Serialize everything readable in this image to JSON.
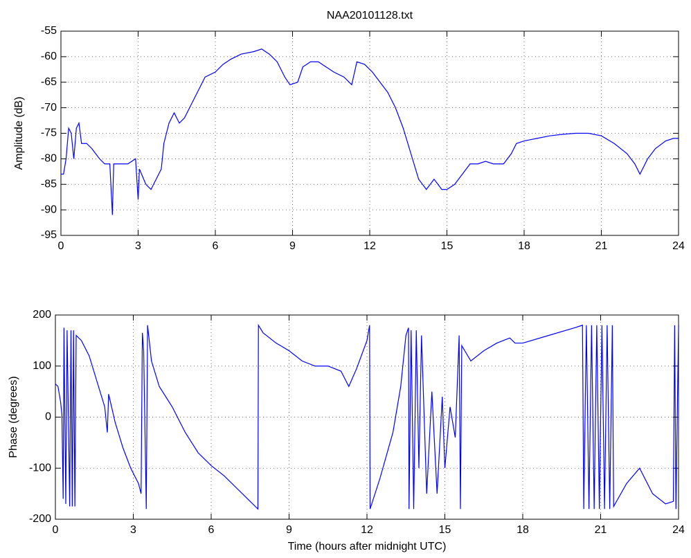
{
  "chart_data": [
    {
      "type": "line",
      "title": "NAA20101128.txt",
      "ylabel": "Amplitude (dB)",
      "grid": true,
      "xlim": [
        0,
        24
      ],
      "xticks": [
        0,
        3,
        6,
        9,
        12,
        15,
        18,
        21,
        24
      ],
      "ylim": [
        -95,
        -55
      ],
      "yticks": [
        -95,
        -90,
        -85,
        -80,
        -75,
        -70,
        -65,
        -60,
        -55
      ],
      "series": [
        {
          "color": "#0000ff",
          "x": [
            0,
            0.1,
            0.2,
            0.3,
            0.4,
            0.5,
            0.6,
            0.7,
            0.8,
            1.0,
            1.2,
            1.5,
            1.7,
            1.9,
            2.0,
            2.05,
            2.3,
            2.6,
            2.9,
            3.0,
            3.05,
            3.3,
            3.5,
            3.7,
            3.9,
            4.0,
            4.2,
            4.4,
            4.6,
            4.8,
            5.0,
            5.3,
            5.6,
            6.0,
            6.3,
            6.6,
            7.0,
            7.5,
            7.8,
            8.1,
            8.4,
            8.7,
            8.9,
            9.2,
            9.4,
            9.7,
            10.0,
            10.3,
            10.6,
            11.0,
            11.3,
            11.5,
            11.8,
            12.1,
            12.4,
            12.7,
            13.0,
            13.3,
            13.6,
            13.9,
            14.2,
            14.5,
            14.8,
            15.0,
            15.3,
            15.6,
            15.9,
            16.2,
            16.5,
            16.8,
            17.2,
            17.5,
            17.7,
            18.0,
            18.5,
            19.0,
            19.5,
            20.0,
            20.5,
            21.0,
            21.5,
            22.0,
            22.3,
            22.5,
            22.8,
            23.1,
            23.5,
            23.8,
            24
          ],
          "values": [
            -83,
            -83,
            -80,
            -74,
            -75,
            -80,
            -74,
            -73,
            -77,
            -77,
            -78,
            -80,
            -81,
            -81,
            -91,
            -81,
            -81,
            -81,
            -80,
            -88,
            -82,
            -85,
            -86,
            -84,
            -82,
            -77,
            -73,
            -71,
            -73,
            -72,
            -70,
            -67,
            -64,
            -63,
            -61.5,
            -60.5,
            -59.5,
            -59,
            -58.5,
            -59.5,
            -61,
            -64,
            -65.5,
            -65,
            -62,
            -61,
            -61,
            -62,
            -63,
            -64,
            -65.5,
            -61,
            -61.5,
            -63,
            -65,
            -67,
            -70,
            -74,
            -79,
            -84,
            -86,
            -84,
            -86,
            -86,
            -85,
            -83,
            -81,
            -81,
            -80.5,
            -81,
            -81,
            -79,
            -77,
            -76.5,
            -76,
            -75.5,
            -75.2,
            -75,
            -75,
            -75.5,
            -77,
            -79,
            -81,
            -83,
            -80,
            -78,
            -76.5,
            -76,
            -76
          ]
        }
      ]
    },
    {
      "type": "line",
      "xlabel": "Time (hours after midnight UTC)",
      "ylabel": "Phase (degrees)",
      "grid": true,
      "xlim": [
        0,
        24
      ],
      "xticks": [
        0,
        3,
        6,
        9,
        12,
        15,
        18,
        21,
        24
      ],
      "ylim": [
        -200,
        200
      ],
      "yticks": [
        -200,
        -100,
        0,
        100,
        200
      ],
      "series": [
        {
          "color": "#0000ff",
          "x": [
            0,
            0.1,
            0.2,
            0.25,
            0.3,
            0.33,
            0.4,
            0.45,
            0.5,
            0.55,
            0.6,
            0.65,
            0.7,
            0.75,
            0.8,
            1.0,
            1.3,
            1.6,
            1.9,
            2.0,
            2.05,
            2.3,
            2.6,
            2.9,
            3.2,
            3.3,
            3.35,
            3.4,
            3.5,
            3.55,
            3.7,
            4.0,
            4.5,
            5.0,
            5.5,
            6.0,
            6.5,
            7.0,
            7.5,
            7.8,
            7.82,
            8.0,
            8.5,
            9.0,
            9.5,
            10.0,
            10.5,
            11.0,
            11.3,
            11.6,
            12.0,
            12.1,
            12.12,
            12.5,
            13.0,
            13.3,
            13.5,
            13.6,
            13.62,
            13.7,
            13.8,
            13.9,
            14.0,
            14.1,
            14.3,
            14.5,
            14.7,
            14.9,
            15.0,
            15.2,
            15.4,
            15.55,
            15.6,
            15.65,
            16.0,
            16.5,
            17.0,
            17.5,
            17.7,
            18.0,
            19.0,
            20.0,
            20.3,
            20.35,
            20.45,
            20.55,
            20.65,
            20.75,
            20.85,
            20.95,
            21.05,
            21.15,
            21.25,
            21.35,
            21.45,
            21.5,
            22.0,
            22.5,
            23.0,
            23.5,
            23.8,
            23.85,
            23.9,
            24
          ],
          "values": [
            65,
            60,
            30,
            5,
            -160,
            175,
            -170,
            170,
            0,
            -175,
            170,
            -175,
            170,
            -175,
            160,
            150,
            120,
            70,
            20,
            -30,
            45,
            -10,
            -60,
            -100,
            -130,
            -150,
            165,
            130,
            -180,
            180,
            110,
            60,
            20,
            -30,
            -70,
            -95,
            -115,
            -140,
            -165,
            -180,
            180,
            165,
            145,
            130,
            110,
            100,
            100,
            90,
            60,
            95,
            150,
            180,
            -180,
            -120,
            -30,
            60,
            160,
            175,
            -180,
            170,
            -180,
            170,
            -100,
            160,
            -150,
            50,
            -150,
            40,
            -100,
            20,
            -40,
            160,
            -180,
            140,
            110,
            130,
            145,
            155,
            145,
            145,
            160,
            175,
            180,
            -180,
            180,
            -180,
            180,
            -180,
            180,
            -180,
            180,
            -180,
            180,
            -180,
            180,
            -175,
            -130,
            -100,
            -150,
            -170,
            -165,
            180,
            -180,
            180
          ]
        }
      ]
    }
  ]
}
